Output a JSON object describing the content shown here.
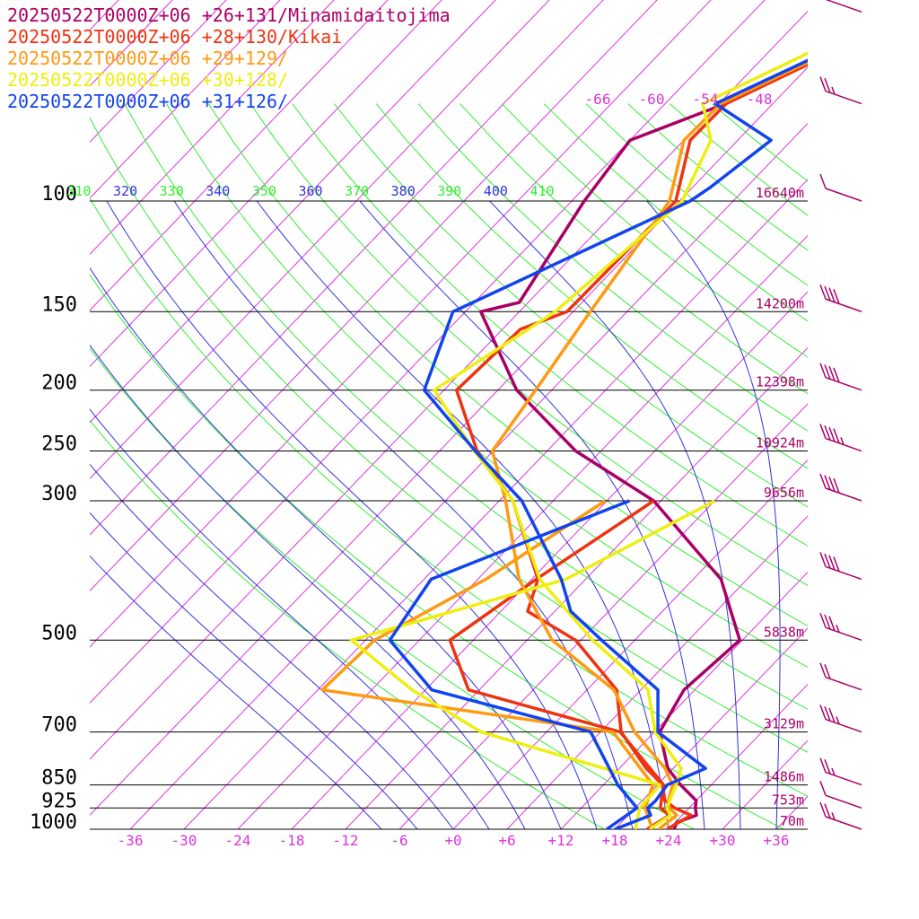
{
  "colors": {
    "isotherm": "#dd33dd",
    "dry_adiabat": "#33ee33",
    "moist_adiabat": "#3333dd",
    "isobar": "#000000",
    "height_label": "#aa0066",
    "wind_barb": "#aa0066"
  },
  "chart_data": {
    "type": "line",
    "subtype": "skew-T log-P sounding",
    "y_axis": {
      "scale": "log",
      "range": [
        1000,
        30
      ],
      "pressure_levels": [
        "100",
        "150",
        "200",
        "250",
        "300",
        "500",
        "700",
        "850",
        "925",
        "1000"
      ],
      "height_labels": [
        {
          "p": 100,
          "text": "16640m"
        },
        {
          "p": 150,
          "text": "14200m"
        },
        {
          "p": 200,
          "text": "12398m"
        },
        {
          "p": 250,
          "text": "10924m"
        },
        {
          "p": 300,
          "text": "9656m"
        },
        {
          "p": 500,
          "text": "5838m"
        },
        {
          "p": 700,
          "text": "3129m"
        },
        {
          "p": 850,
          "text": "1486m"
        },
        {
          "p": 925,
          "text": "753m"
        },
        {
          "p": 1000,
          "text": "70m"
        }
      ]
    },
    "x_axis": {
      "range": [
        -40,
        40
      ],
      "tick_labels": [
        "-36",
        "-30",
        "-24",
        "-18",
        "-12",
        "-6",
        "+0",
        "+6",
        "+12",
        "+18",
        "+24",
        "+30",
        "+36"
      ],
      "tick_values": [
        -36,
        -30,
        -24,
        -18,
        -12,
        -6,
        0,
        6,
        12,
        18,
        24,
        30,
        36
      ]
    },
    "upper_isotherm_labels": [
      "-66",
      "-60",
      "-54",
      "-48"
    ],
    "theta_labels": [
      {
        "text": "310",
        "color": "#33ee33"
      },
      {
        "text": "320",
        "color": "#3333dd"
      },
      {
        "text": "330",
        "color": "#33ee33"
      },
      {
        "text": "340",
        "color": "#3333dd"
      },
      {
        "text": "350",
        "color": "#33ee33"
      },
      {
        "text": "360",
        "color": "#3333dd"
      },
      {
        "text": "370",
        "color": "#33ee33"
      },
      {
        "text": "380",
        "color": "#3333dd"
      },
      {
        "text": "390",
        "color": "#33ee33"
      },
      {
        "text": "400",
        "color": "#3333dd"
      },
      {
        "text": "410",
        "color": "#33ee33"
      }
    ],
    "legend": [
      {
        "text": "20250522T0000Z+06 +26+131/Minamidaitojima",
        "color": "#aa0066"
      },
      {
        "text": "20250522T0000Z+06 +28+130/Kikai",
        "color": "#ee3311"
      },
      {
        "text": "20250522T0000Z+06 +29+129/",
        "color": "#ff9911"
      },
      {
        "text": "20250522T0000Z+06 +30+128/",
        "color": "#eeee11"
      },
      {
        "text": "20250522T0000Z+06 +31+126/",
        "color": "#1144ee"
      }
    ],
    "series": [
      {
        "name": "20250522T0000Z+06 +26+131/Minamidaitojima",
        "color": "#aa0066",
        "temperature": [
          [
            1000,
            24.6
          ],
          [
            975,
            24.2
          ],
          [
            950,
            25.6
          ],
          [
            925,
            24.7
          ],
          [
            900,
            24.0
          ],
          [
            850,
            20.6
          ],
          [
            800,
            17.4
          ],
          [
            700,
            12.6
          ],
          [
            600,
            10.8
          ],
          [
            500,
            11.7
          ],
          [
            400,
            3.1
          ],
          [
            300,
            -12.8
          ],
          [
            250,
            -26.8
          ],
          [
            200,
            -39.9
          ],
          [
            150,
            -52.3
          ],
          [
            145,
            -49.0
          ],
          [
            100,
            -52.6
          ],
          [
            80,
            -54.0
          ],
          [
            70,
            -47.3
          ],
          [
            30,
            -18.0
          ]
        ],
        "dewpoint": []
      },
      {
        "name": "20250522T0000Z+06 +28+130/Kikai",
        "color": "#ee3311",
        "temperature": [
          [
            1000,
            23.8
          ],
          [
            950,
            25.0
          ],
          [
            925,
            22.4
          ],
          [
            900,
            20.5
          ],
          [
            850,
            18.6
          ],
          [
            800,
            15.0
          ],
          [
            700,
            8.3
          ],
          [
            600,
            3.3
          ],
          [
            500,
            -6.6
          ],
          [
            450,
            -15.0
          ],
          [
            400,
            -17.3
          ],
          [
            300,
            -28.5
          ],
          [
            250,
            -37.8
          ],
          [
            200,
            -46.6
          ],
          [
            160,
            -46.0
          ],
          [
            150,
            -42.7
          ],
          [
            100,
            -42.4
          ],
          [
            80,
            -47.3
          ],
          [
            70,
            -47.2
          ],
          [
            30,
            -18.3
          ]
        ],
        "dewpoint": [
          [
            1000,
            21.6
          ],
          [
            950,
            22.6
          ],
          [
            925,
            20.8
          ],
          [
            850,
            18.7
          ],
          [
            700,
            8.2
          ],
          [
            600,
            -13.2
          ],
          [
            500,
            -20.6
          ],
          [
            400,
            -17.5
          ],
          [
            300,
            -12.8
          ]
        ]
      },
      {
        "name": "20250522T0000Z+06 +29+129/",
        "color": "#ff9911",
        "temperature": [
          [
            1000,
            22.9
          ],
          [
            950,
            23.4
          ],
          [
            925,
            21.8
          ],
          [
            900,
            20.9
          ],
          [
            850,
            19.7
          ],
          [
            800,
            17.1
          ],
          [
            700,
            9.8
          ],
          [
            600,
            3.0
          ],
          [
            500,
            -9.2
          ],
          [
            400,
            -19.4
          ],
          [
            300,
            -29.3
          ],
          [
            250,
            -36.1
          ],
          [
            200,
            -37.8
          ],
          [
            150,
            -40.1
          ],
          [
            100,
            -43.1
          ],
          [
            80,
            -48.0
          ],
          [
            70,
            -47.8
          ],
          [
            30,
            -18.5
          ]
        ],
        "dewpoint": [
          [
            1000,
            22.2
          ],
          [
            925,
            19.1
          ],
          [
            850,
            17.5
          ],
          [
            700,
            7.4
          ],
          [
            600,
            -29.5
          ],
          [
            500,
            -29.0
          ],
          [
            400,
            -23.1
          ],
          [
            300,
            -18.2
          ]
        ]
      },
      {
        "name": "20250522T0000Z+06 +30+128/",
        "color": "#eeee11",
        "temperature": [
          [
            1000,
            21.9
          ],
          [
            950,
            22.7
          ],
          [
            925,
            21.5
          ],
          [
            850,
            20.1
          ],
          [
            800,
            18.9
          ],
          [
            700,
            12.1
          ],
          [
            600,
            6.8
          ],
          [
            500,
            -4.7
          ],
          [
            400,
            -17.1
          ],
          [
            300,
            -28.5
          ],
          [
            250,
            -38.1
          ],
          [
            200,
            -49.1
          ],
          [
            150,
            -44.0
          ],
          [
            100,
            -41.7
          ],
          [
            80,
            -45.0
          ],
          [
            70,
            -49.8
          ],
          [
            30,
            -21.0
          ]
        ],
        "dewpoint": [
          [
            1000,
            20.3
          ],
          [
            925,
            18.5
          ],
          [
            850,
            18.3
          ],
          [
            700,
            -7.3
          ],
          [
            600,
            -19.5
          ],
          [
            500,
            -31.6
          ],
          [
            400,
            -14.2
          ],
          [
            300,
            -6.0
          ]
        ]
      },
      {
        "name": "20250522T0000Z+06 +31+126/",
        "color": "#1144ee",
        "temperature": [
          [
            1000,
            18.0
          ],
          [
            950,
            20.5
          ],
          [
            925,
            19.4
          ],
          [
            900,
            19.5
          ],
          [
            850,
            19.1
          ],
          [
            800,
            21.6
          ],
          [
            700,
            12.4
          ],
          [
            600,
            7.9
          ],
          [
            500,
            -3.7
          ],
          [
            450,
            -10.2
          ],
          [
            400,
            -14.7
          ],
          [
            300,
            -27.5
          ],
          [
            250,
            -38.0
          ],
          [
            200,
            -50.2
          ],
          [
            150,
            -55.4
          ],
          [
            100,
            -40.8
          ],
          [
            95,
            -40.0
          ],
          [
            80,
            -38.3
          ],
          [
            70,
            -48.4
          ],
          [
            30,
            -18.2
          ]
        ],
        "dewpoint": [
          [
            1000,
            17.1
          ],
          [
            925,
            18.2
          ],
          [
            850,
            13.6
          ],
          [
            700,
            4.9
          ],
          [
            600,
            -17.3
          ],
          [
            500,
            -27.3
          ],
          [
            400,
            -29.2
          ],
          [
            300,
            -15.5
          ]
        ]
      }
    ],
    "wind_barbs": [
      {
        "p": 1000,
        "kt": 15
      },
      {
        "p": 925,
        "kt": 10
      },
      {
        "p": 850,
        "kt": 15
      },
      {
        "p": 700,
        "kt": 25
      },
      {
        "p": 600,
        "kt": 20
      },
      {
        "p": 500,
        "kt": 25
      },
      {
        "p": 400,
        "kt": 40
      },
      {
        "p": 300,
        "kt": 40
      },
      {
        "p": 250,
        "kt": 35
      },
      {
        "p": 200,
        "kt": 40
      },
      {
        "p": 150,
        "kt": 40
      },
      {
        "p": 100,
        "kt": 10
      },
      {
        "p": 70,
        "kt": 15
      },
      {
        "p": 50,
        "kt": 10
      }
    ]
  }
}
